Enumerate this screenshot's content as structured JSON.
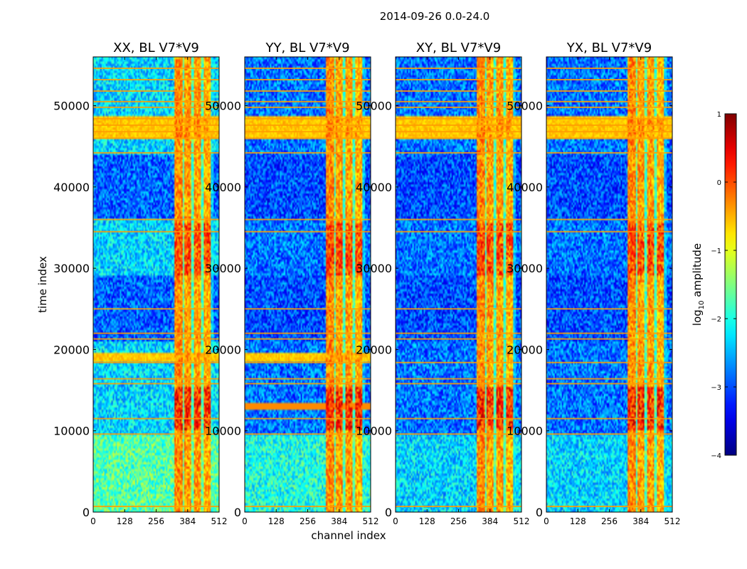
{
  "figure": {
    "suptitle": "2014-09-26 0.0-24.0",
    "xlabel": "channel index",
    "ylabel": "time index"
  },
  "colorbar": {
    "label_prefix": "log",
    "label_sub": "10",
    "label_suffix": " amplitude",
    "range": [
      -4,
      1
    ],
    "ticks": [
      {
        "value": 1,
        "label": "1"
      },
      {
        "value": 0,
        "label": "0"
      },
      {
        "value": -1,
        "label": "−1"
      },
      {
        "value": -2,
        "label": "−2"
      },
      {
        "value": -3,
        "label": "−3"
      },
      {
        "value": -4,
        "label": "−4"
      }
    ],
    "colormap": "jet"
  },
  "chart_data": {
    "type": "heatmap",
    "value_quantity": "log10 amplitude",
    "x_range": [
      0,
      512
    ],
    "y_range": [
      0,
      56000
    ],
    "x_ticks": [
      0,
      128,
      256,
      384,
      512
    ],
    "y_ticks": [
      0,
      10000,
      20000,
      30000,
      40000,
      50000
    ],
    "y_tick_labels": [
      "0",
      "10000",
      "20000",
      "30000",
      "40000",
      "50000"
    ],
    "panels": [
      {
        "title": "XX, BL V7*V9",
        "noise_base": -2.3,
        "low_time_base": -1.7,
        "diag_base": -2.9,
        "diag_band": 0.0
      },
      {
        "title": "YY, BL V7*V9",
        "noise_base": -2.8,
        "low_time_base": -2.0,
        "diag_base": -3.0,
        "diag_band": 1.0
      },
      {
        "title": "XY, BL V7*V9",
        "noise_base": -2.8,
        "low_time_base": -2.3,
        "diag_base": -3.0,
        "diag_band": 0.0
      },
      {
        "title": "YX, BL V7*V9",
        "noise_base": -2.8,
        "low_time_base": -2.3,
        "diag_base": -3.0,
        "diag_band": 0.0
      }
    ],
    "rfi_channel_bands": [
      {
        "from": 330,
        "to": 362,
        "level": -0.3
      },
      {
        "from": 362,
        "to": 372,
        "level": -1.7
      },
      {
        "from": 372,
        "to": 400,
        "level": -0.4
      },
      {
        "from": 400,
        "to": 408,
        "level": -1.8
      },
      {
        "from": 408,
        "to": 440,
        "level": -0.4
      },
      {
        "from": 440,
        "to": 448,
        "level": -1.8
      },
      {
        "from": 448,
        "to": 478,
        "level": -0.5
      },
      {
        "from": 478,
        "to": 490,
        "level": -2.4
      }
    ],
    "rfi_time_lines": [
      700,
      9600,
      11500,
      15800,
      16400,
      18400,
      21300,
      22000,
      25000,
      34500,
      36000,
      44200,
      46000,
      46800,
      47600,
      48400,
      49800,
      50500,
      51800,
      53200,
      54600
    ],
    "rfi_time_bands": [
      {
        "from": 18600,
        "to": 19700,
        "level": -0.6,
        "panels": [
          0,
          1
        ]
      },
      {
        "from": 45800,
        "to": 48800,
        "level": -0.6,
        "panels": [
          0,
          1,
          2,
          3
        ]
      }
    ],
    "bright_bursts": [
      {
        "from": 10000,
        "to": 15500,
        "level": 0.8
      },
      {
        "from": 29000,
        "to": 35500,
        "level": 0.6
      }
    ]
  }
}
